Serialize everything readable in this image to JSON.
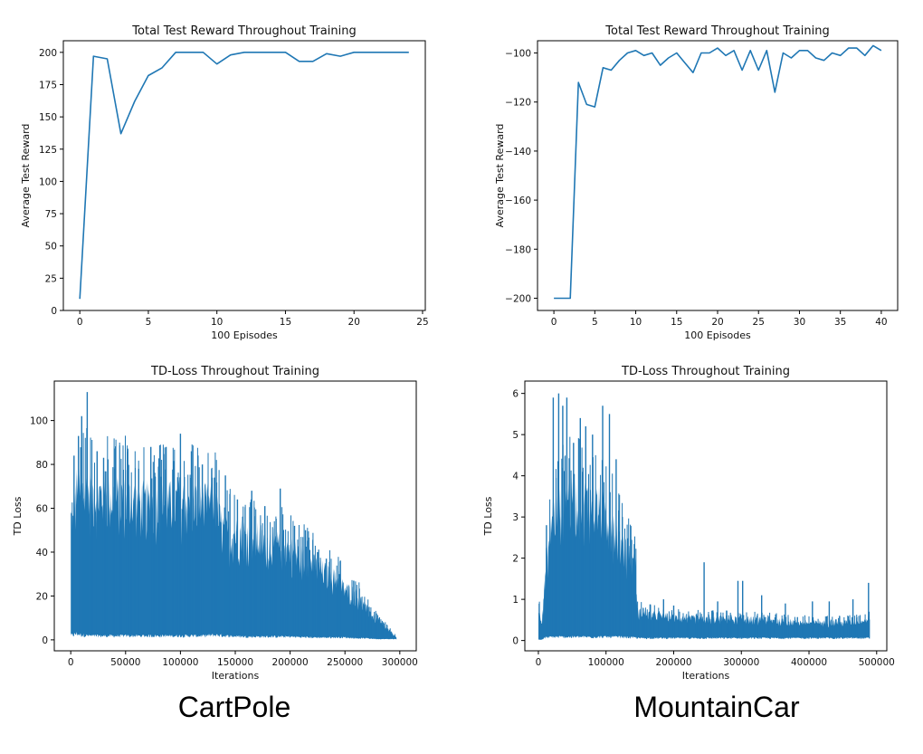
{
  "chart_data": [
    {
      "id": "cp_reward",
      "type": "line",
      "title": "Total Test Reward Throughout Training",
      "xlabel": "100 Episodes",
      "ylabel": "Average Test Reward",
      "xlim": [
        -1.2,
        25.2
      ],
      "ylim": [
        0,
        209
      ],
      "xticks": [
        0,
        5,
        10,
        15,
        20,
        25
      ],
      "yticks": [
        0,
        25,
        50,
        75,
        100,
        125,
        150,
        175,
        200
      ],
      "xtick_labels": [
        "0",
        "5",
        "10",
        "15",
        "20",
        "25"
      ],
      "ytick_labels": [
        "0",
        "25",
        "50",
        "75",
        "100",
        "125",
        "150",
        "175",
        "200"
      ],
      "color": "#1f77b4",
      "series": [
        {
          "x": [
            0,
            1,
            2,
            3,
            4,
            5,
            6,
            7,
            8,
            9,
            10,
            11,
            12,
            13,
            14,
            15,
            16,
            17,
            18,
            19,
            20,
            21,
            22,
            23,
            24
          ],
          "values": [
            9,
            197,
            195,
            137,
            162,
            182,
            188,
            200,
            200,
            200,
            191,
            198,
            200,
            200,
            200,
            200,
            193,
            193,
            199,
            197,
            200,
            200,
            200,
            200,
            200
          ]
        }
      ]
    },
    {
      "id": "mc_reward",
      "type": "line",
      "title": "Total Test Reward Throughout Training",
      "xlabel": "100 Episodes",
      "ylabel": "Average Test Reward",
      "xlim": [
        -2,
        42
      ],
      "ylim": [
        -205,
        -95
      ],
      "xticks": [
        0,
        5,
        10,
        15,
        20,
        25,
        30,
        35,
        40
      ],
      "yticks": [
        -200,
        -180,
        -160,
        -140,
        -120,
        -100
      ],
      "xtick_labels": [
        "0",
        "5",
        "10",
        "15",
        "20",
        "25",
        "30",
        "35",
        "40"
      ],
      "ytick_labels": [
        "−200",
        "−180",
        "−160",
        "−140",
        "−120",
        "−100"
      ],
      "color": "#1f77b4",
      "series": [
        {
          "x": [
            0,
            1,
            2,
            3,
            4,
            5,
            6,
            7,
            8,
            9,
            10,
            11,
            12,
            13,
            14,
            15,
            16,
            17,
            18,
            19,
            20,
            21,
            22,
            23,
            24,
            25,
            26,
            27,
            28,
            29,
            30,
            31,
            32,
            33,
            34,
            35,
            36,
            37,
            38,
            39,
            40
          ],
          "values": [
            -200,
            -200,
            -200,
            -112,
            -121,
            -122,
            -106,
            -107,
            -103,
            -100,
            -99,
            -101,
            -100,
            -105,
            -102,
            -100,
            -104,
            -108,
            -100,
            -100,
            -98,
            -101,
            -99,
            -107,
            -99,
            -107,
            -99,
            -116,
            -100,
            -102,
            -99,
            -99,
            -102,
            -103,
            -100,
            -101,
            -98,
            -98,
            -101,
            -97,
            -99
          ]
        }
      ]
    },
    {
      "id": "cp_loss",
      "type": "area",
      "title": "TD-Loss Throughout Training",
      "xlabel": "Iterations",
      "ylabel": "TD Loss",
      "xlim": [
        -15000,
        315000
      ],
      "ylim": [
        -5,
        118
      ],
      "xticks": [
        0,
        50000,
        100000,
        150000,
        200000,
        250000,
        300000
      ],
      "yticks": [
        0,
        20,
        40,
        60,
        80,
        100
      ],
      "xtick_labels": [
        "0",
        "50000",
        "100000",
        "150000",
        "200000",
        "250000",
        "300000"
      ],
      "ytick_labels": [
        "0",
        "20",
        "40",
        "60",
        "80",
        "100"
      ],
      "color": "#1f77b4",
      "x": [
        0,
        2500,
        5000,
        10000,
        20000,
        40000,
        60000,
        80000,
        100000,
        120000,
        130000,
        134000,
        140000,
        160000,
        180000,
        200000,
        220000,
        240000,
        250000,
        260000,
        270000,
        280000,
        290000,
        296000,
        297000
      ],
      "upper": [
        65,
        60,
        80,
        78,
        78,
        76,
        74,
        72,
        74,
        72,
        72,
        66,
        57,
        56,
        52,
        48,
        40,
        33,
        27,
        24,
        16,
        10,
        5,
        2,
        1
      ],
      "lower": [
        3,
        3,
        4,
        3,
        2.5,
        2.5,
        2.5,
        2.5,
        2.5,
        2.5,
        3,
        3,
        2.5,
        2,
        2,
        2,
        1.5,
        1.5,
        1.5,
        1,
        1,
        0.5,
        0.5,
        0.5,
        0.5
      ],
      "spikes": [
        [
          3000,
          84
        ],
        [
          7000,
          93
        ],
        [
          10000,
          102
        ],
        [
          15000,
          113
        ],
        [
          24000,
          86
        ],
        [
          30000,
          83
        ],
        [
          40000,
          78
        ],
        [
          52000,
          87
        ],
        [
          62000,
          78
        ],
        [
          73000,
          88
        ],
        [
          80000,
          79
        ],
        [
          87000,
          88
        ],
        [
          100000,
          94
        ],
        [
          110000,
          86
        ],
        [
          120000,
          80
        ],
        [
          131000,
          74
        ],
        [
          141000,
          75
        ],
        [
          152000,
          64
        ],
        [
          165000,
          68
        ],
        [
          177000,
          61
        ],
        [
          191000,
          69
        ],
        [
          204000,
          52
        ],
        [
          214000,
          50
        ],
        [
          225000,
          40
        ],
        [
          233000,
          37
        ],
        [
          245000,
          30
        ],
        [
          258000,
          27
        ],
        [
          272000,
          15
        ],
        [
          285000,
          8
        ]
      ]
    },
    {
      "id": "mc_loss",
      "type": "area",
      "title": "TD-Loss Throughout Training",
      "xlabel": "Iterations",
      "ylabel": "TD Loss",
      "xlim": [
        -20000,
        515000
      ],
      "ylim": [
        -0.25,
        6.3
      ],
      "xticks": [
        0,
        100000,
        200000,
        300000,
        400000,
        500000
      ],
      "yticks": [
        0,
        1,
        2,
        3,
        4,
        5,
        6
      ],
      "xtick_labels": [
        "0",
        "100000",
        "200000",
        "300000",
        "400000",
        "500000"
      ],
      "ytick_labels": [
        "0",
        "1",
        "2",
        "3",
        "4",
        "5",
        "6"
      ],
      "color": "#1f77b4",
      "x": [
        0,
        5000,
        10000,
        20000,
        40000,
        60000,
        80000,
        100000,
        120000,
        140000,
        144000,
        146000,
        160000,
        200000,
        250000,
        300000,
        350000,
        400000,
        450000,
        480000,
        490000
      ],
      "upper": [
        0.9,
        0.6,
        1.8,
        3.5,
        4.0,
        4.0,
        3.9,
        3.6,
        2.9,
        2.2,
        2.0,
        0.8,
        0.75,
        0.65,
        0.6,
        0.6,
        0.55,
        0.5,
        0.5,
        0.55,
        0.6
      ],
      "lower": [
        0.03,
        0.03,
        0.1,
        0.12,
        0.12,
        0.12,
        0.12,
        0.12,
        0.12,
        0.1,
        0.1,
        0.08,
        0.08,
        0.08,
        0.08,
        0.08,
        0.08,
        0.08,
        0.08,
        0.08,
        0.08
      ],
      "spikes": [
        [
          12000,
          2.8
        ],
        [
          22000,
          5.9
        ],
        [
          30000,
          6.0
        ],
        [
          36000,
          5.7
        ],
        [
          42000,
          5.9
        ],
        [
          52000,
          4.8
        ],
        [
          62000,
          5.4
        ],
        [
          70000,
          5.2
        ],
        [
          80000,
          5.0
        ],
        [
          95000,
          5.7
        ],
        [
          105000,
          5.5
        ],
        [
          115000,
          4.4
        ],
        [
          124000,
          3.0
        ],
        [
          140000,
          2.0
        ],
        [
          185000,
          1.0
        ],
        [
          200000,
          0.85
        ],
        [
          245000,
          1.9
        ],
        [
          265000,
          0.95
        ],
        [
          295000,
          1.45
        ],
        [
          302000,
          1.45
        ],
        [
          330000,
          1.1
        ],
        [
          365000,
          0.9
        ],
        [
          405000,
          0.95
        ],
        [
          430000,
          0.95
        ],
        [
          465000,
          1.0
        ],
        [
          488000,
          1.4
        ]
      ]
    }
  ],
  "captions": {
    "left": "CartPole",
    "right": "MountainCar"
  }
}
